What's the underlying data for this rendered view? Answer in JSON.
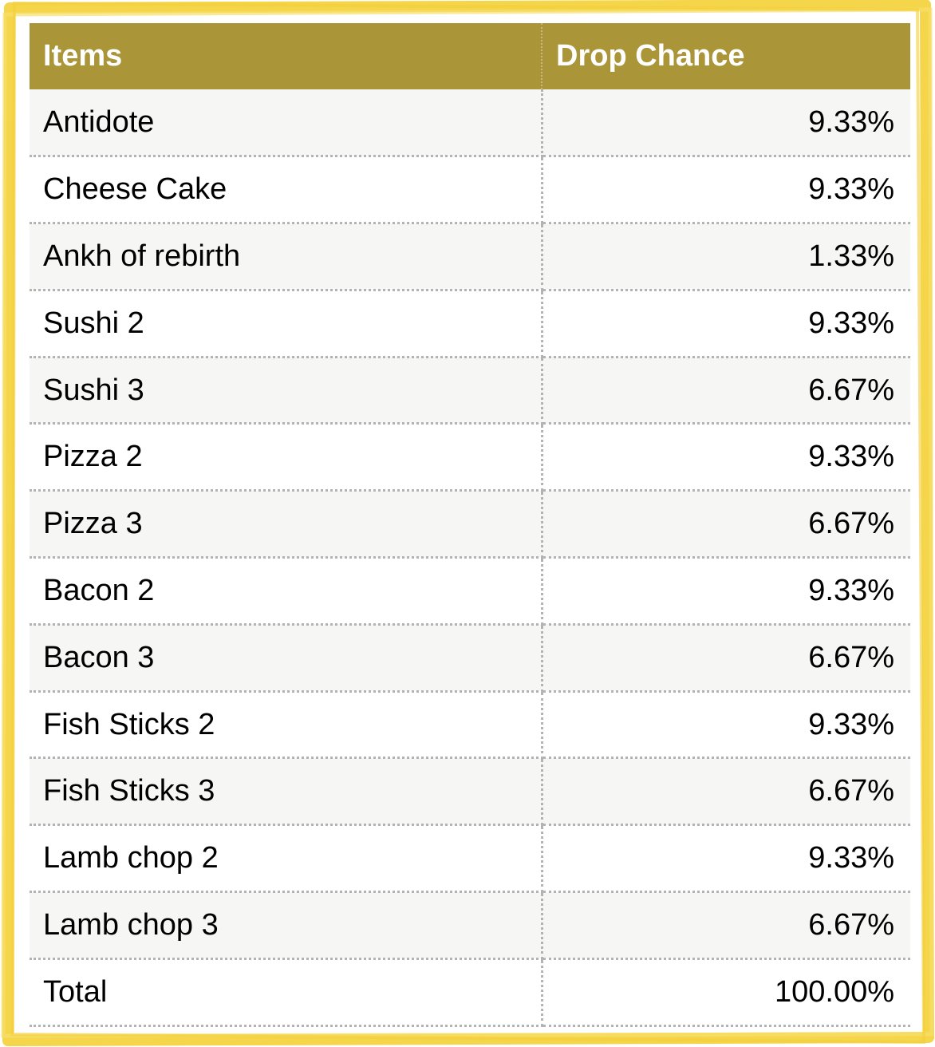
{
  "table": {
    "headers": {
      "items": "Items",
      "drop_chance": "Drop Chance"
    },
    "rows": [
      {
        "item": "Antidote",
        "chance": "9.33%"
      },
      {
        "item": "Cheese Cake",
        "chance": "9.33%"
      },
      {
        "item": "Ankh of rebirth",
        "chance": "1.33%"
      },
      {
        "item": "Sushi 2",
        "chance": "9.33%"
      },
      {
        "item": "Sushi 3",
        "chance": "6.67%"
      },
      {
        "item": "Pizza 2",
        "chance": "9.33%"
      },
      {
        "item": "Pizza 3",
        "chance": "6.67%"
      },
      {
        "item": "Bacon 2",
        "chance": "9.33%"
      },
      {
        "item": "Bacon 3",
        "chance": "6.67%"
      },
      {
        "item": "Fish Sticks 2",
        "chance": "9.33%"
      },
      {
        "item": "Fish Sticks 3",
        "chance": "6.67%"
      },
      {
        "item": "Lamb chop 2",
        "chance": "9.33%"
      },
      {
        "item": "Lamb chop 3",
        "chance": "6.67%"
      }
    ],
    "total": {
      "item": "Total",
      "chance": "100.00%"
    }
  },
  "colors": {
    "header_bg": "#ab9539",
    "frame": "#f5d54a",
    "row_alt": "#f6f6f4"
  }
}
